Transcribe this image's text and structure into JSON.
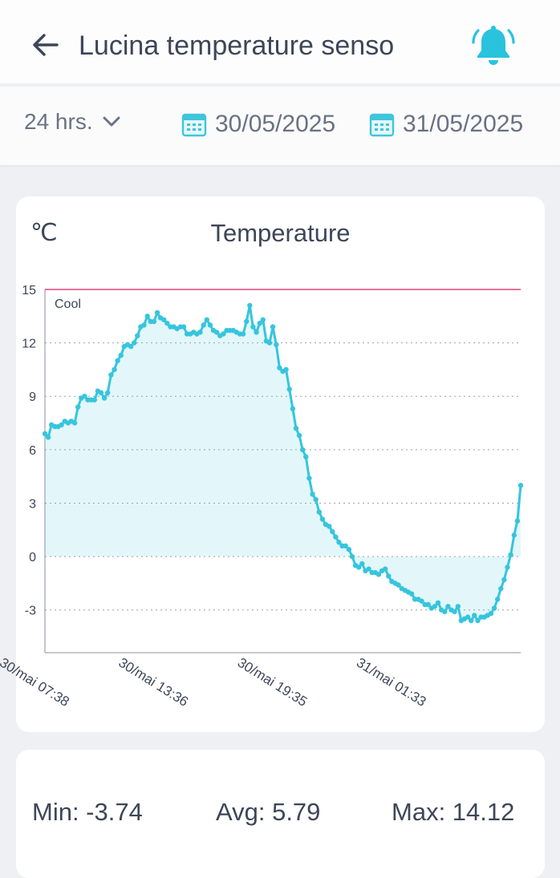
{
  "header": {
    "title": "Lucina temperature senso",
    "back_icon": "arrow-left-icon",
    "bell_icon": "bell-ringing-icon",
    "accent_color": "#29c3dd"
  },
  "filters": {
    "range_label": "24 hrs.",
    "start_date": "30/05/2025",
    "end_date": "31/05/2025",
    "calendar_icon": "calendar-icon"
  },
  "chart_card": {
    "unit": "℃",
    "title": "Temperature"
  },
  "chart_data": {
    "type": "area",
    "title": "Temperature",
    "ylabel": "℃",
    "ylim": [
      -5.4,
      15
    ],
    "yticks": [
      "15",
      "12",
      "9",
      "6",
      "3",
      "0",
      "-3"
    ],
    "xticks": [
      "30/mai 07:38",
      "30/mai 13:36",
      "30/mai 19:35",
      "31/mai 01:33"
    ],
    "xtick_positions": [
      0,
      0.25,
      0.5,
      0.75
    ],
    "threshold": {
      "label": "Cool",
      "value": 15,
      "color": "#e0447f"
    },
    "line_color": "#36c5dd",
    "fill_color": "#e3f7fb",
    "series": [
      {
        "values": [
          6.9,
          6.7,
          7.4,
          7.3,
          7.3,
          7.4,
          7.6,
          7.5,
          7.6,
          7.5,
          8.4,
          8.9,
          9.0,
          8.8,
          8.8,
          8.8,
          9.3,
          9.2,
          8.9,
          9.2,
          10.2,
          10.5,
          11.0,
          11.3,
          11.8,
          11.9,
          11.8,
          12.0,
          12.4,
          12.9,
          13.0,
          13.5,
          13.2,
          13.2,
          13.7,
          13.4,
          13.3,
          13.1,
          12.9,
          12.9,
          12.8,
          12.9,
          12.9,
          12.5,
          12.5,
          12.6,
          12.5,
          12.6,
          13.0,
          13.3,
          13.0,
          12.7,
          12.6,
          12.4,
          12.5,
          12.7,
          12.7,
          12.7,
          12.6,
          12.5,
          12.5,
          13.2,
          14.1,
          12.9,
          12.6,
          13.1,
          13.3,
          12.1,
          12.0,
          12.9,
          11.9,
          10.6,
          10.4,
          10.5,
          9.4,
          8.3,
          7.2,
          6.8,
          6.0,
          5.6,
          4.4,
          3.5,
          3.2,
          2.5,
          2.1,
          1.8,
          1.7,
          1.4,
          1.1,
          0.8,
          0.6,
          0.6,
          0.4,
          0.0,
          -0.5,
          -0.6,
          -0.4,
          -0.8,
          -0.7,
          -0.9,
          -0.9,
          -1.0,
          -0.8,
          -0.7,
          -1.1,
          -1.4,
          -1.5,
          -1.6,
          -1.8,
          -1.9,
          -2.0,
          -2.1,
          -2.4,
          -2.4,
          -2.5,
          -2.7,
          -2.7,
          -2.9,
          -2.8,
          -2.6,
          -3.0,
          -3.1,
          -2.8,
          -3.0,
          -3.1,
          -2.8,
          -3.6,
          -3.5,
          -3.4,
          -3.6,
          -3.3,
          -3.6,
          -3.4,
          -3.4,
          -3.3,
          -3.2,
          -2.9,
          -2.4,
          -1.8,
          -1.3,
          -0.6,
          0.1,
          1.2,
          2.0,
          4.0
        ]
      }
    ]
  },
  "stats": {
    "min": "Min: -3.74",
    "avg": "Avg: 5.79",
    "max": "Max: 14.12"
  }
}
